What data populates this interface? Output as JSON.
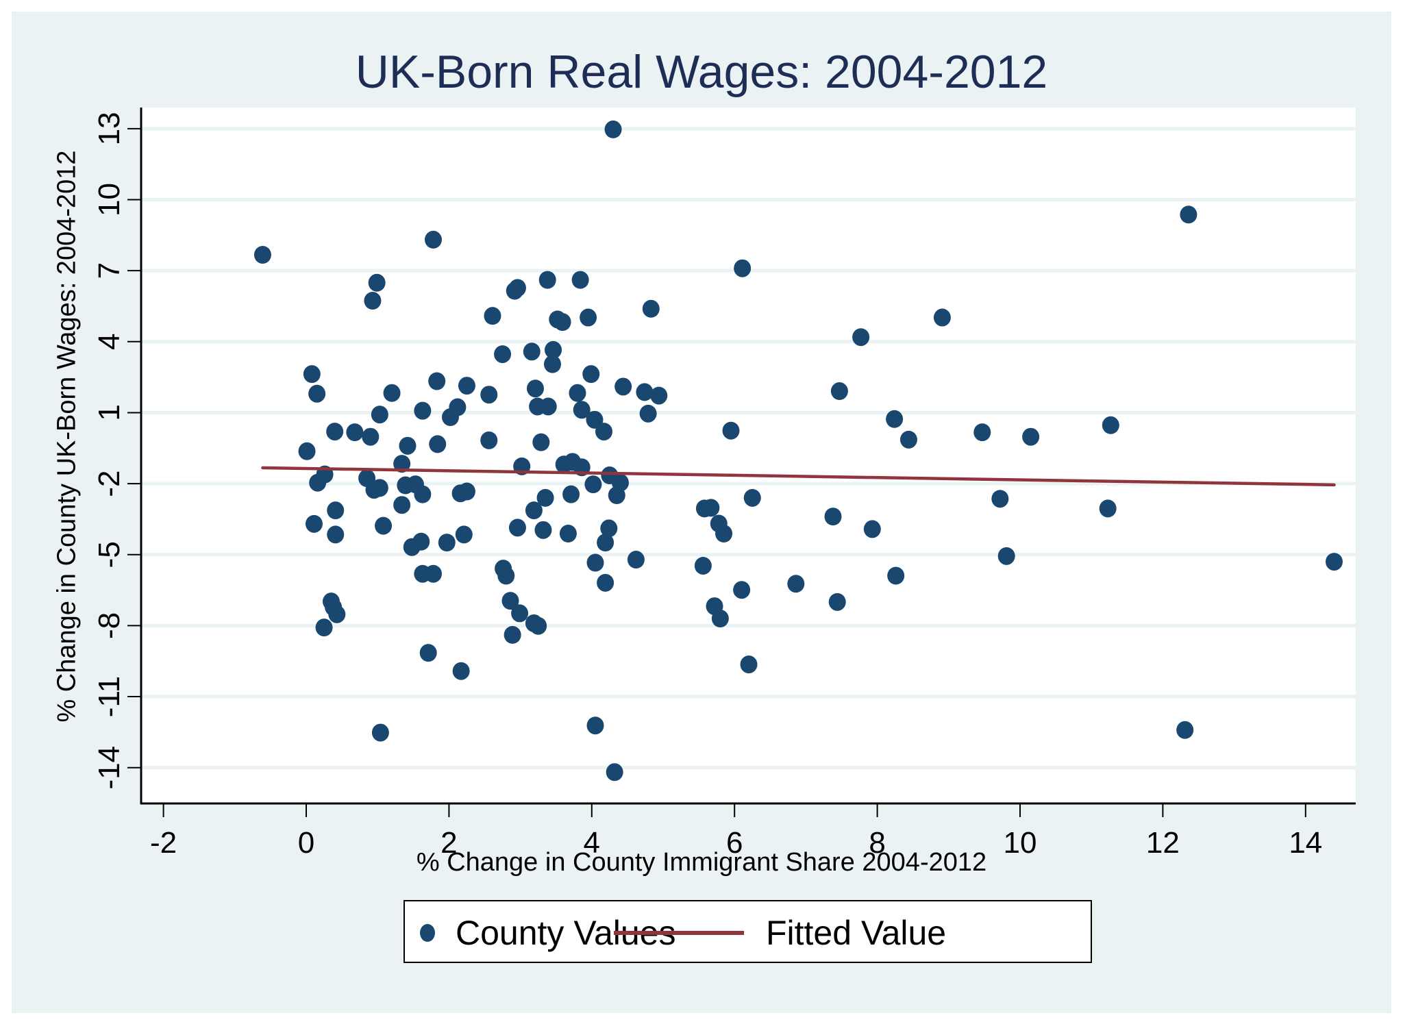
{
  "chart_data": {
    "type": "scatter",
    "title": "UK-Born Real Wages: 2004-2012",
    "xlabel": "% Change in County Immigrant Share 2004-2012",
    "ylabel": "% Change in County UK-Born Wages: 2004-2012",
    "xlim": [
      -2.3,
      14.7
    ],
    "ylim": [
      -15.4,
      13.9
    ],
    "xticks": [
      -2,
      0,
      2,
      4,
      6,
      8,
      10,
      12,
      14
    ],
    "yticks": [
      13,
      10,
      7,
      4,
      1,
      -2,
      -5,
      -8,
      -11,
      -14
    ],
    "grid": "horizontal",
    "legend": {
      "position": "bottom",
      "entries": [
        "County Values",
        "Fitted Value"
      ]
    },
    "colors": {
      "points": "#1a476f",
      "fit": "#90353b",
      "background": "#eaf2f3",
      "title": "#1e2d56",
      "grid": "#eaf2f3"
    },
    "series": [
      {
        "name": "County Values",
        "type": "scatter",
        "points": [
          [
            -0.61,
            7.67
          ],
          [
            0.01,
            -0.63
          ],
          [
            0.08,
            2.63
          ],
          [
            0.11,
            -3.7
          ],
          [
            0.15,
            1.8
          ],
          [
            0.16,
            -1.96
          ],
          [
            0.26,
            -1.61
          ],
          [
            0.25,
            -8.08
          ],
          [
            0.35,
            -6.98
          ],
          [
            0.4,
            0.2
          ],
          [
            0.41,
            -3.13
          ],
          [
            0.41,
            -4.15
          ],
          [
            0.38,
            -7.22
          ],
          [
            0.43,
            -7.52
          ],
          [
            0.68,
            0.17
          ],
          [
            0.85,
            -1.77
          ],
          [
            0.9,
            -0.02
          ],
          [
            0.93,
            5.73
          ],
          [
            0.95,
            -2.26
          ],
          [
            0.99,
            6.49
          ],
          [
            1.03,
            -2.18
          ],
          [
            1.03,
            0.92
          ],
          [
            1.04,
            -12.52
          ],
          [
            1.08,
            -3.78
          ],
          [
            1.2,
            1.83
          ],
          [
            1.34,
            -1.16
          ],
          [
            1.34,
            -2.9
          ],
          [
            1.39,
            -2.07
          ],
          [
            1.42,
            -0.4
          ],
          [
            1.48,
            -4.68
          ],
          [
            1.53,
            -2.03
          ],
          [
            1.61,
            -4.45
          ],
          [
            1.63,
            1.08
          ],
          [
            1.63,
            -2.45
          ],
          [
            1.63,
            -5.81
          ],
          [
            1.71,
            -9.15
          ],
          [
            1.78,
            8.31
          ],
          [
            1.78,
            -5.81
          ],
          [
            1.83,
            2.33
          ],
          [
            1.84,
            -0.33
          ],
          [
            1.97,
            -4.49
          ],
          [
            2.02,
            0.81
          ],
          [
            2.12,
            1.23
          ],
          [
            2.16,
            -2.41
          ],
          [
            2.17,
            -9.92
          ],
          [
            2.21,
            -4.15
          ],
          [
            2.25,
            -2.33
          ],
          [
            2.25,
            2.14
          ],
          [
            2.56,
            1.76
          ],
          [
            2.56,
            -0.17
          ],
          [
            2.61,
            5.09
          ],
          [
            2.75,
            3.47
          ],
          [
            2.76,
            -5.59
          ],
          [
            2.8,
            -5.89
          ],
          [
            2.86,
            -6.95
          ],
          [
            2.89,
            -8.39
          ],
          [
            2.92,
            6.15
          ],
          [
            2.96,
            6.27
          ],
          [
            2.96,
            -3.86
          ],
          [
            2.99,
            -7.48
          ],
          [
            3.02,
            -1.27
          ],
          [
            3.16,
            3.58
          ],
          [
            3.19,
            -3.13
          ],
          [
            3.19,
            -7.9
          ],
          [
            3.21,
            2.02
          ],
          [
            3.24,
            1.26
          ],
          [
            3.25,
            -8.01
          ],
          [
            3.29,
            -0.25
          ],
          [
            3.32,
            -3.96
          ],
          [
            3.35,
            -2.6
          ],
          [
            3.38,
            6.61
          ],
          [
            3.39,
            1.26
          ],
          [
            3.45,
            3.05
          ],
          [
            3.46,
            3.65
          ],
          [
            3.52,
            4.94
          ],
          [
            3.59,
            4.83
          ],
          [
            3.61,
            -1.19
          ],
          [
            3.67,
            -4.11
          ],
          [
            3.71,
            -2.45
          ],
          [
            3.73,
            -1.08
          ],
          [
            3.8,
            1.83
          ],
          [
            3.84,
            6.61
          ],
          [
            3.86,
            1.12
          ],
          [
            3.86,
            -1.31
          ],
          [
            3.95,
            5.02
          ],
          [
            3.99,
            2.63
          ],
          [
            4.02,
            -2.03
          ],
          [
            4.04,
            0.7
          ],
          [
            4.05,
            -5.34
          ],
          [
            4.05,
            -12.22
          ],
          [
            4.17,
            0.2
          ],
          [
            4.19,
            -6.19
          ],
          [
            4.19,
            -4.49
          ],
          [
            4.24,
            -3.89
          ],
          [
            4.25,
            -1.65
          ],
          [
            4.3,
            12.97
          ],
          [
            4.32,
            -14.19
          ],
          [
            4.35,
            -2.49
          ],
          [
            4.4,
            -1.96
          ],
          [
            4.44,
            2.1
          ],
          [
            4.62,
            -5.21
          ],
          [
            4.74,
            1.87
          ],
          [
            4.79,
            0.96
          ],
          [
            4.83,
            5.39
          ],
          [
            4.94,
            1.72
          ],
          [
            5.56,
            -5.47
          ],
          [
            5.58,
            -3.05
          ],
          [
            5.67,
            -3.02
          ],
          [
            5.72,
            -7.18
          ],
          [
            5.78,
            -3.69
          ],
          [
            5.8,
            -7.7
          ],
          [
            5.85,
            -4.11
          ],
          [
            5.95,
            0.24
          ],
          [
            6.1,
            -6.49
          ],
          [
            6.11,
            7.1
          ],
          [
            6.2,
            -9.64
          ],
          [
            6.25,
            -2.6
          ],
          [
            6.86,
            -6.23
          ],
          [
            7.38,
            -3.39
          ],
          [
            7.44,
            -7.0
          ],
          [
            7.47,
            1.91
          ],
          [
            7.77,
            4.19
          ],
          [
            7.93,
            -3.92
          ],
          [
            8.24,
            0.73
          ],
          [
            8.26,
            -5.89
          ],
          [
            8.44,
            -0.14
          ],
          [
            8.91,
            5.02
          ],
          [
            9.47,
            0.17
          ],
          [
            9.72,
            -2.64
          ],
          [
            9.81,
            -5.06
          ],
          [
            10.15,
            -0.02
          ],
          [
            11.23,
            -3.05
          ],
          [
            11.27,
            0.47
          ],
          [
            12.31,
            -12.41
          ],
          [
            12.36,
            9.37
          ],
          [
            14.4,
            -5.3
          ]
        ]
      },
      {
        "name": "Fitted Value",
        "type": "line",
        "points": [
          [
            -0.61,
            -1.33
          ],
          [
            14.4,
            -2.05
          ]
        ]
      }
    ]
  },
  "legend": {
    "county_label": "County Values",
    "fitted_label": "Fitted Value"
  }
}
